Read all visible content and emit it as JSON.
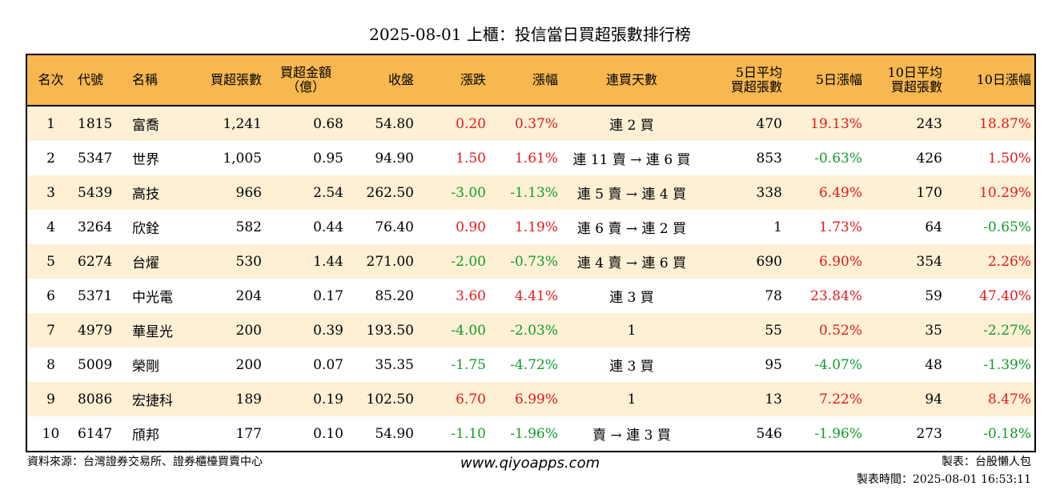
{
  "title": "2025-08-01 上櫃：投信當日買超張數排行榜",
  "headers": {
    "rank": "名次",
    "code": "代號",
    "name": "名稱",
    "buy_lots": "買超張數",
    "amount_l1": "買超金額",
    "amount_l2": "（億）",
    "close": "收盤",
    "change": "漲跌",
    "pct": "漲幅",
    "streak": "連買天數",
    "avg5_l1": "5日平均",
    "avg5_l2": "買超張數",
    "pct5": "5日漲幅",
    "avg10_l1": "10日平均",
    "avg10_l2": "買超張數",
    "pct10": "10日漲幅"
  },
  "rows": [
    {
      "rank": "1",
      "code": "1815",
      "name": "富喬",
      "lots": "1,241",
      "amount": "0.68",
      "close": "54.80",
      "change": "0.20",
      "pct": "0.37%",
      "streak": "連 2 買",
      "avg5": "470",
      "pct5": "19.13%",
      "avg10": "243",
      "pct10": "18.87%"
    },
    {
      "rank": "2",
      "code": "5347",
      "name": "世界",
      "lots": "1,005",
      "amount": "0.95",
      "close": "94.90",
      "change": "1.50",
      "pct": "1.61%",
      "streak": "連 11 賣 → 連 6 買",
      "avg5": "853",
      "pct5": "-0.63%",
      "avg10": "426",
      "pct10": "1.50%"
    },
    {
      "rank": "3",
      "code": "5439",
      "name": "高技",
      "lots": "966",
      "amount": "2.54",
      "close": "262.50",
      "change": "-3.00",
      "pct": "-1.13%",
      "streak": "連 5 賣 → 連 4 買",
      "avg5": "338",
      "pct5": "6.49%",
      "avg10": "170",
      "pct10": "10.29%"
    },
    {
      "rank": "4",
      "code": "3264",
      "name": "欣銓",
      "lots": "582",
      "amount": "0.44",
      "close": "76.40",
      "change": "0.90",
      "pct": "1.19%",
      "streak": "連 6 賣 → 連 2 買",
      "avg5": "1",
      "pct5": "1.73%",
      "avg10": "64",
      "pct10": "-0.65%"
    },
    {
      "rank": "5",
      "code": "6274",
      "name": "台燿",
      "lots": "530",
      "amount": "1.44",
      "close": "271.00",
      "change": "-2.00",
      "pct": "-0.73%",
      "streak": "連 4 賣 → 連 6 買",
      "avg5": "690",
      "pct5": "6.90%",
      "avg10": "354",
      "pct10": "2.26%"
    },
    {
      "rank": "6",
      "code": "5371",
      "name": "中光電",
      "lots": "204",
      "amount": "0.17",
      "close": "85.20",
      "change": "3.60",
      "pct": "4.41%",
      "streak": "連 3 買",
      "avg5": "78",
      "pct5": "23.84%",
      "avg10": "59",
      "pct10": "47.40%"
    },
    {
      "rank": "7",
      "code": "4979",
      "name": "華星光",
      "lots": "200",
      "amount": "0.39",
      "close": "193.50",
      "change": "-4.00",
      "pct": "-2.03%",
      "streak": "1",
      "avg5": "55",
      "pct5": "0.52%",
      "avg10": "35",
      "pct10": "-2.27%"
    },
    {
      "rank": "8",
      "code": "5009",
      "name": "榮剛",
      "lots": "200",
      "amount": "0.07",
      "close": "35.35",
      "change": "-1.75",
      "pct": "-4.72%",
      "streak": "連 3 買",
      "avg5": "95",
      "pct5": "-4.07%",
      "avg10": "48",
      "pct10": "-1.39%"
    },
    {
      "rank": "9",
      "code": "8086",
      "name": "宏捷科",
      "lots": "189",
      "amount": "0.19",
      "close": "102.50",
      "change": "6.70",
      "pct": "6.99%",
      "streak": "1",
      "avg5": "13",
      "pct5": "7.22%",
      "avg10": "94",
      "pct10": "8.47%"
    },
    {
      "rank": "10",
      "code": "6147",
      "name": "頎邦",
      "lots": "177",
      "amount": "0.10",
      "close": "54.90",
      "change": "-1.10",
      "pct": "-1.96%",
      "streak": "賣 → 連 3 買",
      "avg5": "546",
      "pct5": "-1.96%",
      "avg10": "273",
      "pct10": "-0.18%"
    }
  ],
  "footer": {
    "source": "資料來源：台灣證券交易所、證券櫃檯買賣中心",
    "url": "www.qiyoapps.com",
    "maker": "製表：台股懶人包",
    "time": "製表時間：2025-08-01 16:53:11"
  },
  "colors": {
    "header_bg": "#f6b84f",
    "stripe_bg": "#fdf0d5",
    "up": "#e31a1c",
    "down": "#139a2c"
  }
}
